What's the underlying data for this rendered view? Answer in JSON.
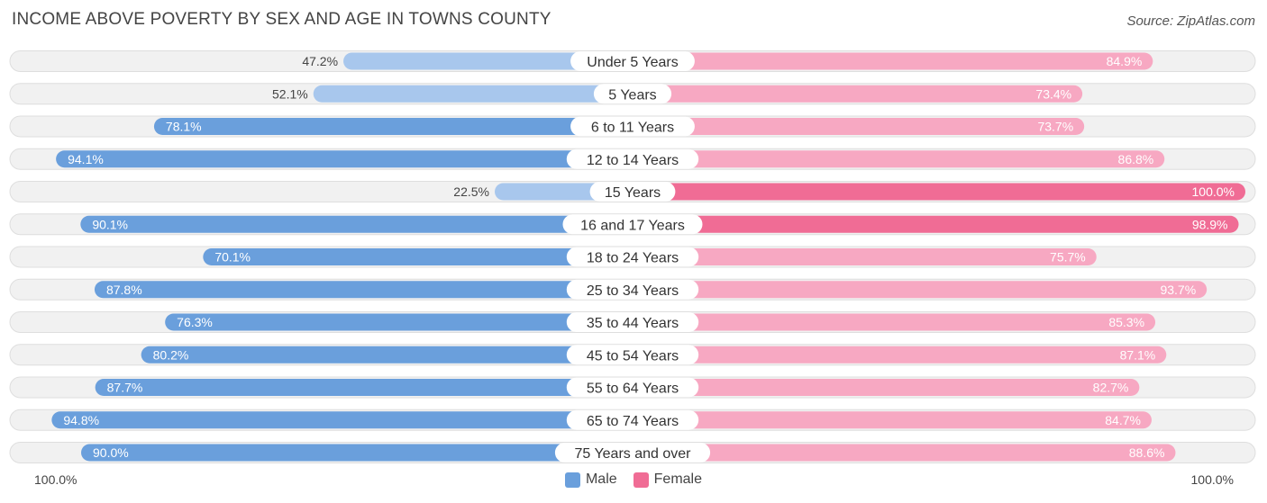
{
  "chart_data": {
    "type": "bar",
    "orientation": "horizontal-diverging",
    "title": "INCOME ABOVE POVERTY BY SEX AND AGE IN TOWNS COUNTY",
    "source": "Source: ZipAtlas.com",
    "categories": [
      "Under 5 Years",
      "5 Years",
      "6 to 11 Years",
      "12 to 14 Years",
      "15 Years",
      "16 and 17 Years",
      "18 to 24 Years",
      "25 to 34 Years",
      "35 to 44 Years",
      "45 to 54 Years",
      "55 to 64 Years",
      "65 to 74 Years",
      "75 Years and over"
    ],
    "series": [
      {
        "name": "Male",
        "values": [
          47.2,
          52.1,
          78.1,
          94.1,
          22.5,
          90.1,
          70.1,
          87.8,
          76.3,
          80.2,
          87.7,
          94.8,
          90.0
        ],
        "labels": [
          "47.2%",
          "52.1%",
          "78.1%",
          "94.1%",
          "22.5%",
          "90.1%",
          "70.1%",
          "87.8%",
          "76.3%",
          "80.2%",
          "87.7%",
          "94.8%",
          "90.0%"
        ]
      },
      {
        "name": "Female",
        "values": [
          84.9,
          73.4,
          73.7,
          86.8,
          100.0,
          98.9,
          75.7,
          93.7,
          85.3,
          87.1,
          82.7,
          84.7,
          88.6
        ],
        "labels": [
          "84.9%",
          "73.4%",
          "73.7%",
          "86.8%",
          "100.0%",
          "98.9%",
          "75.7%",
          "93.7%",
          "85.3%",
          "87.1%",
          "82.7%",
          "84.7%",
          "88.6%"
        ]
      }
    ],
    "xlim": [
      0,
      100
    ],
    "axis_left_label": "100.0%",
    "axis_right_label": "100.0%",
    "legend": [
      "Male",
      "Female"
    ]
  },
  "colors": {
    "male_strong": "#6a9fdc",
    "male_light": "#a8c7ed",
    "female_strong": "#f06c95",
    "female_light": "#f7a8c2",
    "row_bg": "#f1f1f1",
    "row_border": "#dedede"
  }
}
